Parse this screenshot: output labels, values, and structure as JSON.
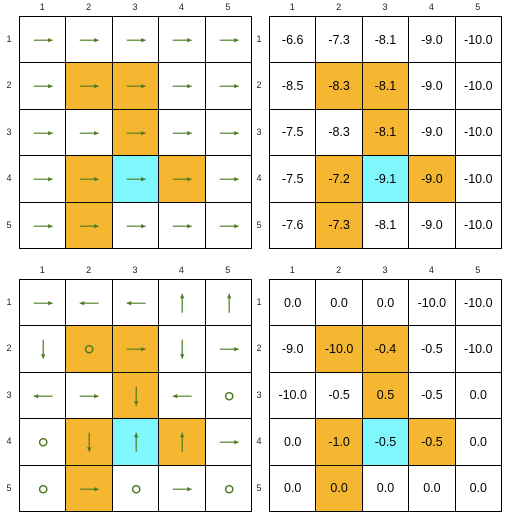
{
  "col_labels": [
    "1",
    "2",
    "3",
    "4",
    "5"
  ],
  "row_labels": [
    "1",
    "2",
    "3",
    "4",
    "5"
  ],
  "colors": {
    "orange": "#f5b731",
    "cyan": "#80f6fd",
    "arrow": "#4e7a22",
    "grid": "#000000"
  },
  "panels": [
    {
      "id": "top-left-policy",
      "kind": "policy",
      "highlight": [
        [
          "",
          "",
          "",
          "",
          ""
        ],
        [
          "",
          "orange",
          "orange",
          "",
          ""
        ],
        [
          "",
          "",
          "orange",
          "",
          ""
        ],
        [
          "",
          "orange",
          "cyan",
          "orange",
          ""
        ],
        [
          "",
          "orange",
          "",
          "",
          ""
        ]
      ],
      "cells": [
        [
          "right",
          "right",
          "right",
          "right",
          "right"
        ],
        [
          "right",
          "right",
          "right",
          "right",
          "right"
        ],
        [
          "right",
          "right",
          "right",
          "right",
          "right"
        ],
        [
          "right",
          "right",
          "right",
          "right",
          "right"
        ],
        [
          "right",
          "right",
          "right",
          "right",
          "right"
        ]
      ]
    },
    {
      "id": "top-right-values",
      "kind": "values",
      "highlight": [
        [
          "",
          "",
          "",
          "",
          ""
        ],
        [
          "",
          "orange",
          "orange",
          "",
          ""
        ],
        [
          "",
          "",
          "orange",
          "",
          ""
        ],
        [
          "",
          "orange",
          "cyan",
          "orange",
          ""
        ],
        [
          "",
          "orange",
          "",
          "",
          ""
        ]
      ],
      "cells": [
        [
          "-6.6",
          "-7.3",
          "-8.1",
          "-9.0",
          "-10.0"
        ],
        [
          "-8.5",
          "-8.3",
          "-8.1",
          "-9.0",
          "-10.0"
        ],
        [
          "-7.5",
          "-8.3",
          "-8.1",
          "-9.0",
          "-10.0"
        ],
        [
          "-7.5",
          "-7.2",
          "-9.1",
          "-9.0",
          "-10.0"
        ],
        [
          "-7.6",
          "-7.3",
          "-8.1",
          "-9.0",
          "-10.0"
        ]
      ]
    },
    {
      "id": "bottom-left-policy",
      "kind": "policy",
      "highlight": [
        [
          "",
          "",
          "",
          "",
          ""
        ],
        [
          "",
          "orange",
          "orange",
          "",
          ""
        ],
        [
          "",
          "",
          "orange",
          "",
          ""
        ],
        [
          "",
          "orange",
          "cyan",
          "orange",
          ""
        ],
        [
          "",
          "orange",
          "",
          "",
          ""
        ]
      ],
      "cells": [
        [
          "right",
          "left",
          "left",
          "up",
          "up"
        ],
        [
          "down",
          "stay",
          "right",
          "down",
          "right"
        ],
        [
          "left",
          "right",
          "down",
          "left",
          "stay"
        ],
        [
          "stay",
          "down",
          "up",
          "up",
          "right"
        ],
        [
          "stay",
          "right",
          "stay",
          "right",
          "stay"
        ]
      ]
    },
    {
      "id": "bottom-right-values",
      "kind": "values",
      "highlight": [
        [
          "",
          "",
          "",
          "",
          ""
        ],
        [
          "",
          "orange",
          "orange",
          "",
          ""
        ],
        [
          "",
          "",
          "orange",
          "",
          ""
        ],
        [
          "",
          "orange",
          "cyan",
          "orange",
          ""
        ],
        [
          "",
          "orange",
          "",
          "",
          ""
        ]
      ],
      "cells": [
        [
          "0.0",
          "0.0",
          "0.0",
          "-10.0",
          "-10.0"
        ],
        [
          "-9.0",
          "-10.0",
          "-0.4",
          "-0.5",
          "-10.0"
        ],
        [
          "-10.0",
          "-0.5",
          "0.5",
          "-0.5",
          "0.0"
        ],
        [
          "0.0",
          "-1.0",
          "-0.5",
          "-0.5",
          "0.0"
        ],
        [
          "0.0",
          "0.0",
          "0.0",
          "0.0",
          "0.0"
        ]
      ]
    }
  ]
}
